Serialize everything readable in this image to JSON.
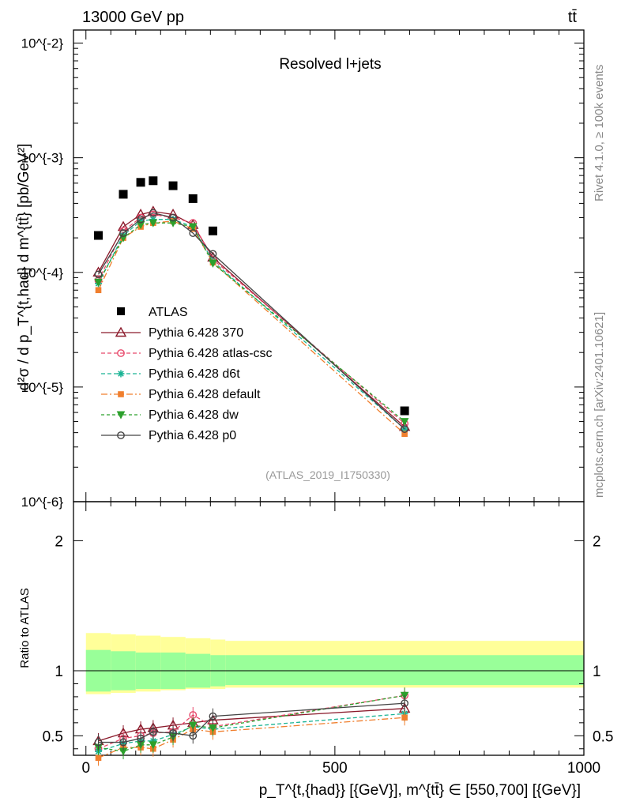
{
  "header": {
    "energy_label": "13000 GeV pp",
    "process_label": "tt̄",
    "plot_title": "Resolved l+jets",
    "analysis_tag": "(ATLAS_2019_I1750330)",
    "side_label_top": "Rivet 4.1.0, ≥ 100k events",
    "side_label_bottom": "mcplots.cern.ch [arXiv:2401.10621]"
  },
  "axes": {
    "main_ylabel": "d²σ / d p_T^{t,had} d m^{tt̄} [pb/GeV²]",
    "ratio_ylabel": "Ratio to ATLAS",
    "xlabel": "p_T^{t,{had}} [{GeV}], m^{tt̄} ∈ [550,700] [{GeV}]",
    "xticks": [
      "0",
      "500",
      "1000"
    ],
    "main_yticks": [
      "10^{-6}",
      "10^{-5}",
      "10^{-4}",
      "10^{-3}",
      "10^{-2}"
    ],
    "ratio_yticks": [
      "0.5",
      "1",
      "2"
    ]
  },
  "chart_data": {
    "type": "scatter",
    "x_range": [
      -25,
      1000
    ],
    "main_y_log_range": [
      1e-06,
      0.013
    ],
    "ratio_y_range": [
      0.35,
      2.3
    ],
    "ratio_band_edges": [
      0,
      50,
      100,
      150,
      200,
      250,
      280,
      1000
    ],
    "ratio_band_inner": [
      [
        0.84,
        1.16
      ],
      [
        0.85,
        1.15
      ],
      [
        0.86,
        1.14
      ],
      [
        0.86,
        1.14
      ],
      [
        0.87,
        1.13
      ],
      [
        0.88,
        1.12
      ],
      [
        0.89,
        1.12
      ]
    ],
    "ratio_band_outer": [
      [
        0.82,
        1.29
      ],
      [
        0.83,
        1.28
      ],
      [
        0.84,
        1.27
      ],
      [
        0.85,
        1.26
      ],
      [
        0.86,
        1.25
      ],
      [
        0.86,
        1.24
      ],
      [
        0.87,
        1.23
      ]
    ],
    "x": [
      25,
      75,
      110,
      135,
      175,
      215,
      255,
      640
    ],
    "reference": {
      "name": "ATLAS",
      "color": "#000000",
      "values": [
        0.00021,
        0.00048,
        0.00061,
        0.00063,
        0.00057,
        0.00044,
        0.00023,
        6.2e-06
      ]
    },
    "series": [
      {
        "name": "Pythia 6.428 370",
        "color": "#8b1a2b",
        "dash": "",
        "marker": "triangle-open",
        "values": [
          0.0001,
          0.00025,
          0.00032,
          0.00034,
          0.00032,
          0.00026,
          0.000135,
          4.5e-06
        ],
        "ratio": [
          0.46,
          0.52,
          0.55,
          0.56,
          0.58,
          0.6,
          0.62,
          0.71
        ]
      },
      {
        "name": "Pythia 6.428 atlas-csc",
        "color": "#e8496b",
        "dash": "5,3",
        "marker": "circle-open",
        "values": [
          8.5e-05,
          0.00023,
          0.0003,
          0.00032,
          0.0003,
          0.00027,
          0.00013,
          4.8e-06
        ],
        "ratio": [
          0.4,
          0.48,
          0.5,
          0.52,
          0.53,
          0.66,
          0.57,
          0.81
        ]
      },
      {
        "name": "Pythia 6.428 d6t",
        "color": "#1ab394",
        "dash": "5,3",
        "marker": "star",
        "values": [
          8e-05,
          0.00021,
          0.00028,
          0.00029,
          0.00029,
          0.00025,
          0.000125,
          4.3e-06
        ],
        "ratio": [
          0.38,
          0.44,
          0.46,
          0.46,
          0.51,
          0.57,
          0.55,
          0.67
        ]
      },
      {
        "name": "Pythia 6.428 default",
        "color": "#f07f2e",
        "dash": "8,3,2,3",
        "marker": "square",
        "values": [
          7e-05,
          0.0002,
          0.00025,
          0.00027,
          0.00028,
          0.00024,
          0.000122,
          3.9e-06
        ],
        "ratio": [
          0.33,
          0.41,
          0.41,
          0.4,
          0.47,
          0.55,
          0.53,
          0.64
        ]
      },
      {
        "name": "Pythia 6.428 dw",
        "color": "#2ca02c",
        "dash": "4,3",
        "marker": "triangle-down",
        "values": [
          8.2e-05,
          0.0002,
          0.00026,
          0.00027,
          0.00027,
          0.00025,
          0.00012,
          5e-06
        ],
        "ratio": [
          0.41,
          0.38,
          0.43,
          0.43,
          0.49,
          0.58,
          0.56,
          0.81
        ]
      },
      {
        "name": "Pythia 6.428 p0",
        "color": "#444444",
        "dash": "",
        "marker": "circle-open",
        "values": [
          9.6e-05,
          0.00022,
          0.00029,
          0.00033,
          0.0003,
          0.00022,
          0.000145,
          4.3e-06
        ],
        "ratio": [
          0.45,
          0.45,
          0.48,
          0.53,
          0.52,
          0.5,
          0.65,
          0.75
        ]
      }
    ]
  }
}
